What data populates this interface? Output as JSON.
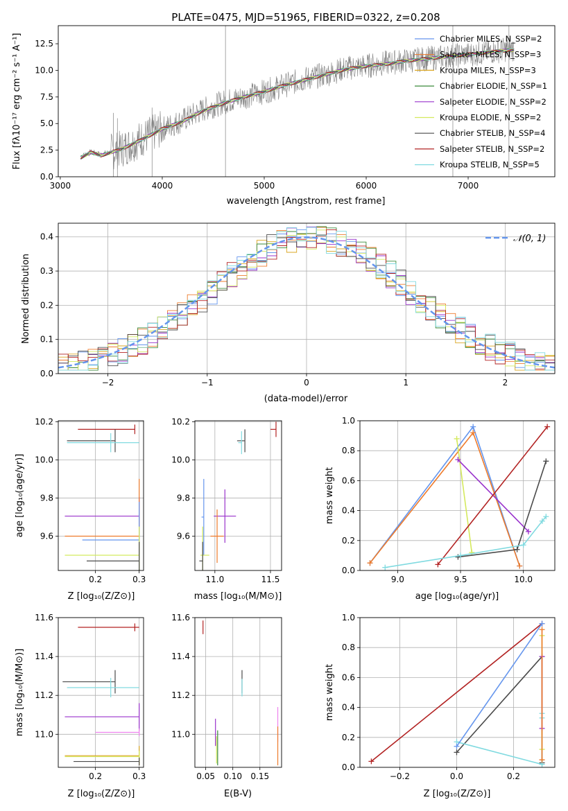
{
  "chart_data": [
    {
      "type": "line",
      "panel": "spectrum",
      "title": "PLATE=0475, MJD=51965, FIBERID=0322, z=0.208",
      "xlabel": "wavelength [Angstrom, rest frame]",
      "ylabel": "Flux [fλ10⁻¹⁷ erg cm⁻² s⁻¹ A⁻¹]",
      "xlim": [
        2980,
        7850
      ],
      "ylim": [
        0,
        14.2
      ],
      "xticks": [
        "3000",
        "4000",
        "5000",
        "6000",
        "7000"
      ],
      "yticks": [
        "0.0",
        "2.5",
        "5.0",
        "7.5",
        "10.0",
        "12.5"
      ],
      "legend": "upper-right",
      "data_x": [
        3200,
        3300,
        3400,
        3600,
        3800,
        4000,
        4200,
        4400,
        4600,
        4800,
        5000,
        5200,
        5400,
        5600,
        5800,
        6000,
        6200,
        6400,
        6600,
        6800,
        7000,
        7200,
        7400
      ],
      "data_y": [
        1.9,
        2.3,
        2.1,
        2.6,
        3.6,
        4.5,
        5.3,
        6.3,
        7.0,
        7.5,
        8.0,
        8.6,
        9.2,
        9.6,
        10.2,
        10.4,
        10.7,
        10.9,
        11.1,
        11.3,
        11.5,
        11.7,
        12.0
      ],
      "model_y": [
        1.8,
        2.3,
        2.0,
        2.6,
        3.5,
        4.5,
        5.2,
        6.2,
        6.9,
        7.5,
        8.0,
        8.6,
        9.1,
        9.6,
        10.1,
        10.4,
        10.6,
        10.9,
        11.1,
        11.3,
        11.5,
        11.7,
        11.9
      ],
      "series": [
        {
          "name": "Chabrier MILES, N_SSP=2",
          "color": "#6495ed"
        },
        {
          "name": "Salpeter MILES, N_SSP=3",
          "color": "#ee7b2b"
        },
        {
          "name": "Kroupa MILES, N_SSP=3",
          "color": "#daa520"
        },
        {
          "name": "Chabrier ELODIE, N_SSP=1",
          "color": "#3a8a3a"
        },
        {
          "name": "Salpeter ELODIE, N_SSP=2",
          "color": "#9932cc"
        },
        {
          "name": "Kroupa ELODIE, N_SSP=2",
          "color": "#d4e95d"
        },
        {
          "name": "Chabrier STELIB, N_SSP=4",
          "color": "#4a4a4a"
        },
        {
          "name": "Salpeter STELIB, N_SSP=2",
          "color": "#b22222"
        },
        {
          "name": "Kroupa STELIB, N_SSP=5",
          "color": "#80dae0"
        }
      ]
    },
    {
      "type": "histogram",
      "panel": "residuals",
      "xlabel": "(data-model)/error",
      "ylabel": "Normed distribution",
      "xlim": [
        -2.5,
        2.5
      ],
      "ylim": [
        0,
        0.44
      ],
      "xticks": [
        "−2",
        "−1",
        "0",
        "1",
        "2"
      ],
      "yticks": [
        "0.0",
        "0.1",
        "0.2",
        "0.3",
        "0.4"
      ],
      "legend": {
        "label": "𝒩(0, 1)",
        "position": "upper-right",
        "color": "#6495ed"
      },
      "grid": true,
      "bin_centers": [
        -2.4,
        -2.2,
        -2.0,
        -1.8,
        -1.6,
        -1.4,
        -1.2,
        -1.0,
        -0.8,
        -0.6,
        -0.4,
        -0.2,
        0.0,
        0.2,
        0.4,
        0.6,
        0.8,
        1.0,
        1.2,
        1.4,
        1.6,
        1.8,
        2.0,
        2.2,
        2.4
      ],
      "values": [
        0.035,
        0.08,
        0.11,
        0.12,
        0.15,
        0.2,
        0.22,
        0.27,
        0.3,
        0.33,
        0.38,
        0.35,
        0.37,
        0.36,
        0.33,
        0.3,
        0.25,
        0.2,
        0.16,
        0.12,
        0.1,
        0.08,
        0.06,
        0.04,
        0.03
      ]
    },
    {
      "type": "scatter",
      "panel": "age-vs-Z",
      "xlabel": "Z [log₁₀(Z/Z⊙)]",
      "ylabel": "age  [log₁₀(age/yr)]",
      "xlim": [
        0.115,
        0.31
      ],
      "ylim": [
        9.42,
        10.205
      ],
      "xticks": [
        "0.2",
        "0.3"
      ],
      "yticks": [
        "9.6",
        "9.8",
        "10.0",
        "10.2"
      ],
      "points": [
        {
          "x": 0.29,
          "y": 10.16,
          "xerr": [
            0.13,
            0
          ],
          "yerr": 0.025,
          "color": "#b22222"
        },
        {
          "x": 0.245,
          "y": 10.1,
          "xerr": [
            0.11,
            0
          ],
          "yerr": 0.06,
          "color": "#4a4a4a"
        },
        {
          "x": 0.235,
          "y": 10.09,
          "xerr": [
            0.1,
            0.065
          ],
          "yerr": 0.05,
          "color": "#80dae0"
        },
        {
          "x": 0.3,
          "y": 9.705,
          "xerr": [
            0.17,
            0
          ],
          "yerr": 0.1,
          "color": "#9932cc"
        },
        {
          "x": 0.3,
          "y": 9.6,
          "xerr": [
            0.17,
            0
          ],
          "yerr": 0.3,
          "color": "#ee7b2b"
        },
        {
          "x": 0.3,
          "y": 9.58,
          "xerr": [
            0.13,
            0
          ],
          "yerr": 0.2,
          "color": "#6495ed"
        },
        {
          "x": 0.3,
          "y": 9.5,
          "xerr": [
            0.17,
            0
          ],
          "yerr": 0.15,
          "color": "#d4e95d"
        },
        {
          "x": 0.3,
          "y": 9.47,
          "xerr": [
            0.12,
            0
          ],
          "yerr": 0.1,
          "color": "#4a4a4a"
        }
      ]
    },
    {
      "type": "scatter",
      "panel": "age-vs-mass",
      "xlabel": "mass [log₁₀(M/M⊙)]",
      "xlim": [
        10.82,
        11.6
      ],
      "ylim": [
        9.42,
        10.205
      ],
      "xticks": [
        "11.0",
        "11.5"
      ],
      "yticks": [
        "9.6",
        "9.8",
        "10.0",
        "10.2"
      ],
      "points": [
        {
          "x": 11.55,
          "y": 10.16,
          "xerr": [
            0.05,
            0
          ],
          "yerr": 0.04,
          "color": "#b22222"
        },
        {
          "x": 11.27,
          "y": 10.1,
          "xerr": [
            0.07,
            0
          ],
          "yerr": 0.06,
          "color": "#4a4a4a"
        },
        {
          "x": 11.24,
          "y": 10.09,
          "xerr": [
            0.03,
            0
          ],
          "yerr": 0.06,
          "color": "#80dae0"
        },
        {
          "x": 11.09,
          "y": 9.705,
          "xerr": [
            0.1,
            0.1
          ],
          "yerr": 0.14,
          "color": "#9932cc"
        },
        {
          "x": 11.02,
          "y": 9.6,
          "xerr": [
            0.06,
            0.06
          ],
          "yerr": 0.14,
          "color": "#ee7b2b"
        },
        {
          "x": 10.9,
          "y": 9.7,
          "xerr": [
            0.02,
            0
          ],
          "yerr": 0.2,
          "color": "#6495ed"
        },
        {
          "x": 10.89,
          "y": 9.5,
          "xerr": [
            0.02,
            0.06
          ],
          "yerr": 0.15,
          "color": "#d4e95d"
        },
        {
          "x": 10.89,
          "y": 9.47,
          "xerr": [
            0.03,
            0
          ],
          "yerr": 0.1,
          "color": "#4a4a4a"
        }
      ]
    },
    {
      "type": "line",
      "panel": "massweight-vs-age",
      "xlabel": "age  [log₁₀(age/yr)]",
      "ylabel": "mass weight",
      "xlim": [
        8.7,
        10.25
      ],
      "ylim": [
        0,
        1.0
      ],
      "xticks": [
        "9.0",
        "9.5",
        "10.0"
      ],
      "yticks": [
        "0.0",
        "0.2",
        "0.4",
        "0.6",
        "0.8",
        "1.0"
      ],
      "grid": true,
      "series": [
        {
          "color": "#6495ed",
          "x": [
            8.78,
            9.6,
            9.97
          ],
          "y": [
            0.05,
            0.96,
            0.03
          ]
        },
        {
          "color": "#ee7b2b",
          "x": [
            8.78,
            9.6,
            9.97
          ],
          "y": [
            0.05,
            0.92,
            0.03
          ]
        },
        {
          "color": "#d4e95d",
          "x": [
            9.47,
            9.59
          ],
          "y": [
            0.88,
            0.12
          ]
        },
        {
          "color": "#9932cc",
          "x": [
            9.48,
            10.04
          ],
          "y": [
            0.74,
            0.26
          ]
        },
        {
          "color": "#b22222",
          "x": [
            9.32,
            10.19
          ],
          "y": [
            0.04,
            0.96
          ]
        },
        {
          "color": "#4a4a4a",
          "x": [
            9.48,
            9.95,
            10.18
          ],
          "y": [
            0.09,
            0.14,
            0.73
          ]
        },
        {
          "color": "#80dae0",
          "x": [
            8.9,
            9.5,
            10.0,
            10.15,
            10.18
          ],
          "y": [
            0.02,
            0.1,
            0.17,
            0.33,
            0.36
          ]
        }
      ]
    },
    {
      "type": "scatter",
      "panel": "mass-vs-Z",
      "xlabel": "Z [log₁₀(Z/Z⊙)]",
      "ylabel": "mass [log₁₀(M/M⊙)]",
      "xlim": [
        0.115,
        0.31
      ],
      "ylim": [
        10.83,
        11.6
      ],
      "xticks": [
        "0.2",
        "0.3"
      ],
      "yticks": [
        "11.0",
        "11.2",
        "11.4",
        "11.6"
      ],
      "points": [
        {
          "x": 0.29,
          "y": 11.55,
          "xerr": [
            0.13,
            0.01
          ],
          "yerr": 0.02,
          "color": "#b22222"
        },
        {
          "x": 0.245,
          "y": 11.27,
          "xerr": [
            0.12,
            0
          ],
          "yerr": 0.06,
          "color": "#4a4a4a"
        },
        {
          "x": 0.235,
          "y": 11.24,
          "xerr": [
            0.1,
            0.065
          ],
          "yerr": 0.05,
          "color": "#80dae0"
        },
        {
          "x": 0.3,
          "y": 11.09,
          "xerr": [
            0.17,
            0
          ],
          "yerr": 0.07,
          "color": "#9932cc"
        },
        {
          "x": 0.3,
          "y": 11.01,
          "xerr": [
            0.1,
            0
          ],
          "yerr": 0.02,
          "color": "#ee82ee"
        },
        {
          "x": 0.3,
          "y": 10.89,
          "xerr": [
            0.17,
            0
          ],
          "yerr": 0.05,
          "color": "#daa520"
        },
        {
          "x": 0.3,
          "y": 10.885,
          "xerr": [
            0.17,
            0
          ],
          "yerr": 0.03,
          "color": "#d4e95d"
        },
        {
          "x": 0.3,
          "y": 10.86,
          "xerr": [
            0.15,
            0
          ],
          "yerr": 0.02,
          "color": "#4a4a4a"
        }
      ]
    },
    {
      "type": "scatter",
      "panel": "mass-vs-EBV",
      "xlabel": "E(B-V)",
      "xlim": [
        0.03,
        0.19
      ],
      "ylim": [
        10.83,
        11.6
      ],
      "xticks": [
        "0.05",
        "0.10",
        "0.15"
      ],
      "yticks": [
        "11.0",
        "11.2",
        "11.4",
        "11.6"
      ],
      "points": [
        {
          "x": 0.045,
          "y": 11.55,
          "yerr": 0.035,
          "color": "#b22222"
        },
        {
          "x": 0.117,
          "y": 11.27,
          "yerr": 0.06,
          "color": "#4a4a4a"
        },
        {
          "x": 0.117,
          "y": 11.24,
          "yerr": 0.045,
          "color": "#80dae0"
        },
        {
          "x": 0.068,
          "y": 11.01,
          "yerr": 0.07,
          "color": "#9932cc"
        },
        {
          "x": 0.072,
          "y": 10.93,
          "yerr": 0.09,
          "color": "#3a8a3a"
        },
        {
          "x": 0.07,
          "y": 10.92,
          "yerr": 0.07,
          "color": "#d4e95d"
        },
        {
          "x": 0.183,
          "y": 11.05,
          "yerr": 0.09,
          "color": "#ee82ee"
        },
        {
          "x": 0.183,
          "y": 10.94,
          "yerr": 0.1,
          "color": "#ee7b2b"
        }
      ]
    },
    {
      "type": "line",
      "panel": "massweight-vs-Z",
      "xlabel": "Z [log₁₀(Z/Z⊙)]",
      "ylabel": "mass weight",
      "xlim": [
        -0.34,
        0.345
      ],
      "ylim": [
        0,
        1.0
      ],
      "xticks": [
        "−0.2",
        "0.0",
        "0.2"
      ],
      "yticks": [
        "0.0",
        "0.2",
        "0.4",
        "0.6",
        "0.8",
        "1.0"
      ],
      "grid": true,
      "series": [
        {
          "color": "#b22222",
          "x": [
            -0.3,
            0.3
          ],
          "y": [
            0.04,
            0.96
          ]
        },
        {
          "color": "#4a4a4a",
          "x": [
            0.0,
            0.3,
            0.3
          ],
          "y": [
            0.1,
            0.74,
            0.03
          ]
        },
        {
          "color": "#80dae0",
          "x": [
            0.0,
            0.3,
            0.3,
            0.3
          ],
          "y": [
            0.17,
            0.02,
            0.36,
            0.33
          ]
        },
        {
          "color": "#6495ed",
          "x": [
            0.0,
            0.3
          ],
          "y": [
            0.14,
            0.96
          ]
        },
        {
          "color": "#d4e95d",
          "x": [
            0.3,
            0.3
          ],
          "y": [
            0.88,
            0.12
          ]
        },
        {
          "color": "#9932cc",
          "x": [
            0.3,
            0.3
          ],
          "y": [
            0.74,
            0.26
          ]
        },
        {
          "color": "#ee7b2b",
          "x": [
            0.3,
            0.3
          ],
          "y": [
            0.92,
            0.05
          ]
        }
      ]
    }
  ]
}
